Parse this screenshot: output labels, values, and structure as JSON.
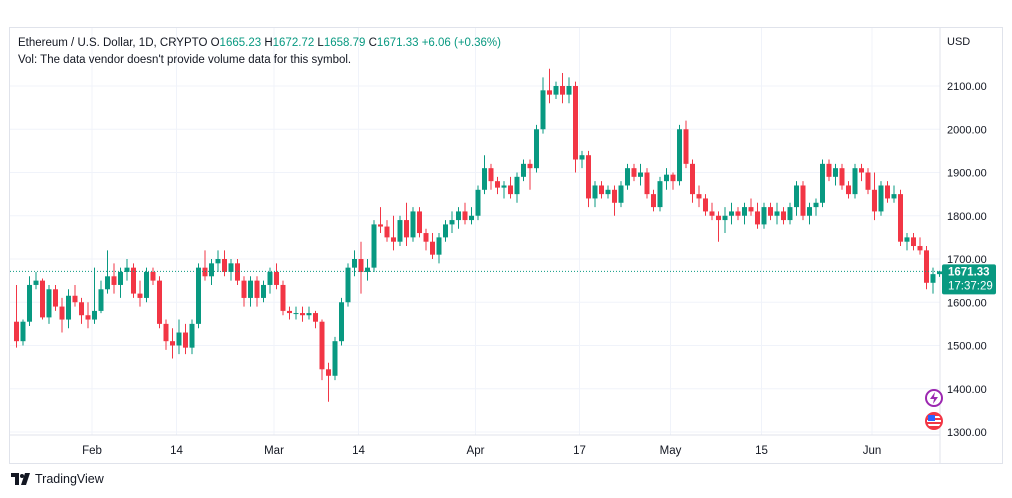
{
  "legend": {
    "symbol": "Ethereum / U.S. Dollar, 1D, CRYPTO",
    "open_label": "O",
    "open": "1665.23",
    "high_label": "H",
    "high": "1672.72",
    "low_label": "L",
    "low": "1658.79",
    "close_label": "C",
    "close": "1671.33",
    "change": "+6.06 (+0.36%)",
    "volume_note": "Vol: The data vendor doesn't provide volume data for this symbol."
  },
  "price_axis": {
    "currency": "USD",
    "ticks": [
      "2100.00",
      "2000.00",
      "1900.00",
      "1800.00",
      "1700.00",
      "1600.00",
      "1500.00",
      "1400.00",
      "1300.00"
    ]
  },
  "last_price": {
    "value": "1671.33",
    "countdown": "17:37:29"
  },
  "brand": {
    "name": "TradingView"
  },
  "colors": {
    "up": "#089981",
    "down": "#f23645",
    "accent": "#089981"
  },
  "badges": [
    "lightning-icon",
    "us-flag-icon"
  ],
  "chart_data": {
    "type": "candlestick",
    "title": "Ethereum / U.S. Dollar, 1D, CRYPTO",
    "ylabel": "USD",
    "ylim": [
      1300,
      2150
    ],
    "time_axis_labels": [
      {
        "label": "Feb",
        "date": "2023-02-01"
      },
      {
        "label": "14",
        "date": "2023-02-14"
      },
      {
        "label": "Mar",
        "date": "2023-03-01"
      },
      {
        "label": "14",
        "date": "2023-03-14"
      },
      {
        "label": "Apr",
        "date": "2023-04-01"
      },
      {
        "label": "17",
        "date": "2023-04-17"
      },
      {
        "label": "May",
        "date": "2023-05-01"
      },
      {
        "label": "15",
        "date": "2023-05-15"
      },
      {
        "label": "Jun",
        "date": "2023-06-01"
      }
    ],
    "start_date": "2023-01-20",
    "last_close": 1671.33,
    "grid": true,
    "ohlc": [
      [
        1555,
        1640,
        1495,
        1510
      ],
      [
        1510,
        1560,
        1500,
        1555
      ],
      [
        1555,
        1660,
        1545,
        1640
      ],
      [
        1640,
        1670,
        1630,
        1650
      ],
      [
        1650,
        1655,
        1560,
        1565
      ],
      [
        1565,
        1640,
        1550,
        1630
      ],
      [
        1630,
        1640,
        1580,
        1590
      ],
      [
        1590,
        1610,
        1530,
        1560
      ],
      [
        1560,
        1630,
        1540,
        1615
      ],
      [
        1615,
        1640,
        1590,
        1600
      ],
      [
        1600,
        1610,
        1550,
        1570
      ],
      [
        1570,
        1600,
        1540,
        1560
      ],
      [
        1560,
        1680,
        1550,
        1580
      ],
      [
        1580,
        1650,
        1575,
        1630
      ],
      [
        1630,
        1720,
        1620,
        1660
      ],
      [
        1660,
        1690,
        1620,
        1640
      ],
      [
        1640,
        1680,
        1610,
        1670
      ],
      [
        1670,
        1700,
        1650,
        1680
      ],
      [
        1680,
        1690,
        1610,
        1620
      ],
      [
        1620,
        1650,
        1590,
        1610
      ],
      [
        1610,
        1680,
        1600,
        1670
      ],
      [
        1670,
        1680,
        1640,
        1650
      ],
      [
        1650,
        1660,
        1540,
        1550
      ],
      [
        1550,
        1560,
        1490,
        1510
      ],
      [
        1510,
        1540,
        1470,
        1500
      ],
      [
        1500,
        1560,
        1480,
        1530
      ],
      [
        1530,
        1550,
        1480,
        1495
      ],
      [
        1495,
        1560,
        1480,
        1550
      ],
      [
        1550,
        1690,
        1540,
        1680
      ],
      [
        1680,
        1720,
        1650,
        1660
      ],
      [
        1660,
        1700,
        1640,
        1690
      ],
      [
        1690,
        1720,
        1670,
        1700
      ],
      [
        1700,
        1720,
        1660,
        1670
      ],
      [
        1670,
        1700,
        1650,
        1690
      ],
      [
        1690,
        1700,
        1640,
        1650
      ],
      [
        1650,
        1660,
        1590,
        1610
      ],
      [
        1610,
        1660,
        1590,
        1650
      ],
      [
        1650,
        1660,
        1590,
        1610
      ],
      [
        1610,
        1650,
        1600,
        1640
      ],
      [
        1640,
        1680,
        1620,
        1670
      ],
      [
        1670,
        1690,
        1630,
        1640
      ],
      [
        1640,
        1650,
        1570,
        1580
      ],
      [
        1580,
        1590,
        1560,
        1575
      ],
      [
        1575,
        1590,
        1560,
        1575
      ],
      [
        1575,
        1590,
        1555,
        1570
      ],
      [
        1570,
        1590,
        1560,
        1575
      ],
      [
        1575,
        1580,
        1540,
        1555
      ],
      [
        1555,
        1560,
        1420,
        1445
      ],
      [
        1445,
        1460,
        1370,
        1430
      ],
      [
        1430,
        1520,
        1420,
        1510
      ],
      [
        1510,
        1610,
        1500,
        1600
      ],
      [
        1600,
        1690,
        1590,
        1680
      ],
      [
        1680,
        1720,
        1660,
        1700
      ],
      [
        1700,
        1740,
        1620,
        1670
      ],
      [
        1670,
        1700,
        1650,
        1680
      ],
      [
        1680,
        1790,
        1670,
        1780
      ],
      [
        1780,
        1820,
        1760,
        1775
      ],
      [
        1775,
        1790,
        1740,
        1750
      ],
      [
        1750,
        1800,
        1720,
        1740
      ],
      [
        1740,
        1800,
        1730,
        1790
      ],
      [
        1790,
        1830,
        1730,
        1750
      ],
      [
        1750,
        1820,
        1740,
        1810
      ],
      [
        1810,
        1820,
        1750,
        1760
      ],
      [
        1760,
        1770,
        1720,
        1740
      ],
      [
        1740,
        1760,
        1700,
        1710
      ],
      [
        1710,
        1760,
        1690,
        1750
      ],
      [
        1750,
        1790,
        1740,
        1780
      ],
      [
        1780,
        1810,
        1760,
        1790
      ],
      [
        1790,
        1820,
        1770,
        1810
      ],
      [
        1810,
        1830,
        1780,
        1790
      ],
      [
        1790,
        1820,
        1780,
        1800
      ],
      [
        1800,
        1870,
        1790,
        1860
      ],
      [
        1860,
        1940,
        1850,
        1910
      ],
      [
        1910,
        1920,
        1860,
        1880
      ],
      [
        1880,
        1890,
        1850,
        1865
      ],
      [
        1865,
        1880,
        1840,
        1870
      ],
      [
        1870,
        1890,
        1840,
        1850
      ],
      [
        1850,
        1900,
        1830,
        1890
      ],
      [
        1890,
        1930,
        1880,
        1920
      ],
      [
        1920,
        1930,
        1860,
        1910
      ],
      [
        1910,
        2010,
        1900,
        2000
      ],
      [
        2000,
        2120,
        1990,
        2090
      ],
      [
        2090,
        2140,
        2060,
        2080
      ],
      [
        2080,
        2110,
        2070,
        2100
      ],
      [
        2100,
        2130,
        2060,
        2080
      ],
      [
        2080,
        2120,
        2060,
        2100
      ],
      [
        2100,
        2110,
        1900,
        1930
      ],
      [
        1930,
        1950,
        1910,
        1940
      ],
      [
        1940,
        1950,
        1820,
        1840
      ],
      [
        1840,
        1880,
        1820,
        1870
      ],
      [
        1870,
        1880,
        1840,
        1850
      ],
      [
        1850,
        1870,
        1840,
        1860
      ],
      [
        1860,
        1870,
        1800,
        1830
      ],
      [
        1830,
        1880,
        1820,
        1870
      ],
      [
        1870,
        1920,
        1860,
        1910
      ],
      [
        1910,
        1920,
        1880,
        1890
      ],
      [
        1890,
        1920,
        1870,
        1900
      ],
      [
        1900,
        1910,
        1840,
        1850
      ],
      [
        1850,
        1860,
        1810,
        1820
      ],
      [
        1820,
        1890,
        1810,
        1880
      ],
      [
        1880,
        1910,
        1860,
        1895
      ],
      [
        1895,
        1900,
        1860,
        1880
      ],
      [
        1880,
        2010,
        1870,
        2000
      ],
      [
        2000,
        2020,
        1910,
        1920
      ],
      [
        1920,
        1930,
        1830,
        1850
      ],
      [
        1850,
        1870,
        1820,
        1840
      ],
      [
        1840,
        1850,
        1800,
        1810
      ],
      [
        1810,
        1830,
        1790,
        1800
      ],
      [
        1800,
        1810,
        1740,
        1790
      ],
      [
        1790,
        1820,
        1760,
        1800
      ],
      [
        1800,
        1830,
        1780,
        1810
      ],
      [
        1810,
        1820,
        1790,
        1800
      ],
      [
        1800,
        1830,
        1780,
        1820
      ],
      [
        1820,
        1840,
        1800,
        1810
      ],
      [
        1810,
        1830,
        1770,
        1780
      ],
      [
        1780,
        1830,
        1770,
        1820
      ],
      [
        1820,
        1830,
        1790,
        1800
      ],
      [
        1800,
        1830,
        1780,
        1810
      ],
      [
        1810,
        1820,
        1780,
        1790
      ],
      [
        1790,
        1830,
        1780,
        1820
      ],
      [
        1820,
        1880,
        1800,
        1870
      ],
      [
        1870,
        1880,
        1790,
        1800
      ],
      [
        1800,
        1830,
        1780,
        1820
      ],
      [
        1820,
        1840,
        1800,
        1830
      ],
      [
        1830,
        1930,
        1820,
        1920
      ],
      [
        1920,
        1930,
        1880,
        1890
      ],
      [
        1890,
        1920,
        1870,
        1910
      ],
      [
        1910,
        1920,
        1860,
        1870
      ],
      [
        1870,
        1880,
        1840,
        1850
      ],
      [
        1850,
        1920,
        1840,
        1910
      ],
      [
        1910,
        1920,
        1880,
        1900
      ],
      [
        1900,
        1910,
        1850,
        1860
      ],
      [
        1860,
        1900,
        1790,
        1810
      ],
      [
        1810,
        1880,
        1800,
        1870
      ],
      [
        1870,
        1880,
        1830,
        1840
      ],
      [
        1840,
        1870,
        1830,
        1850
      ],
      [
        1850,
        1860,
        1730,
        1740
      ],
      [
        1740,
        1760,
        1720,
        1750
      ],
      [
        1750,
        1760,
        1720,
        1730
      ],
      [
        1730,
        1750,
        1710,
        1720
      ],
      [
        1720,
        1730,
        1630,
        1645
      ],
      [
        1645,
        1680,
        1620,
        1665
      ],
      [
        1665,
        1672.72,
        1658.79,
        1671.33
      ]
    ]
  }
}
